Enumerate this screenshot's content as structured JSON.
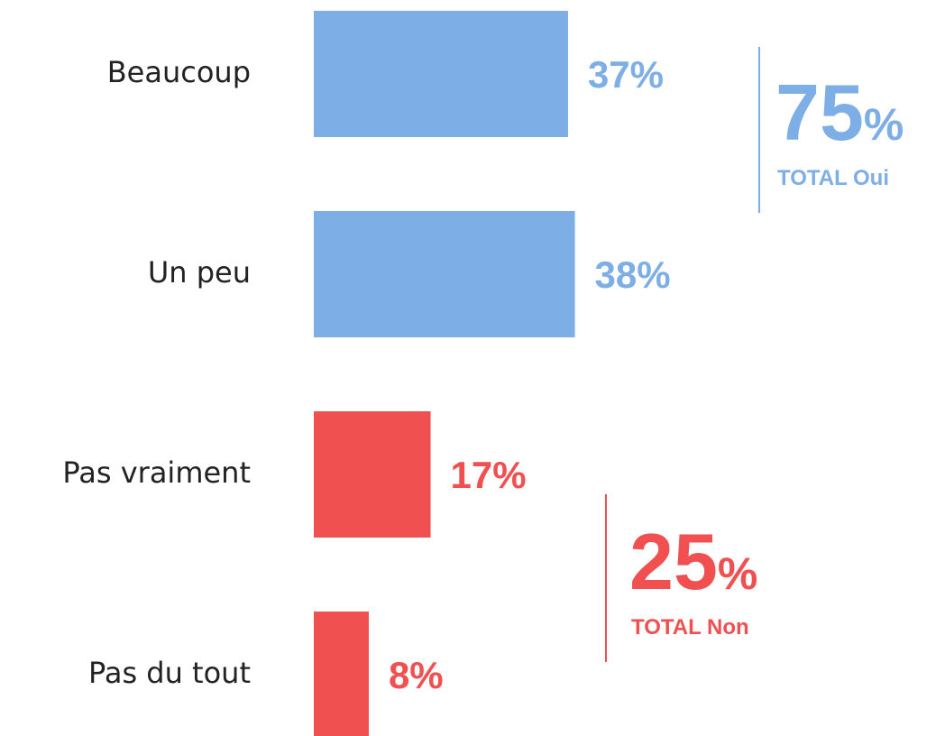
{
  "chart_data": {
    "type": "bar",
    "orientation": "horizontal",
    "categories": [
      "Beaucoup",
      "Un peu",
      "Pas vraiment",
      "Pas du tout"
    ],
    "values": [
      37,
      38,
      17,
      8
    ],
    "value_labels": [
      "37%",
      "38%",
      "17%",
      "8%"
    ],
    "colors": [
      "#7eaee6",
      "#7eaee6",
      "#f05050",
      "#f05050"
    ],
    "totals": [
      {
        "value": 75,
        "label": "75%",
        "text": "TOTAL Oui",
        "color": "#7eaee6"
      },
      {
        "value": 25,
        "label": "25%",
        "text": "TOTAL Non",
        "color": "#f05050"
      }
    ]
  }
}
